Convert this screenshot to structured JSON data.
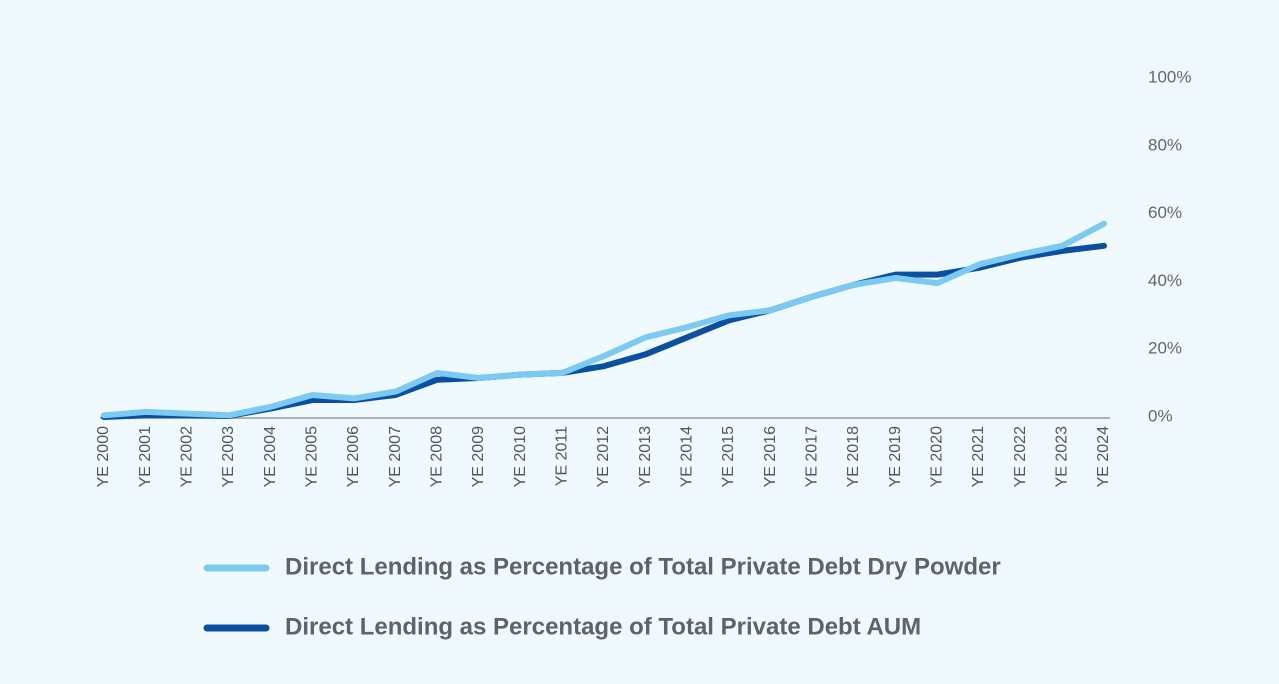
{
  "chart_data": {
    "type": "line",
    "categories": [
      "YE 2000",
      "YE 2001",
      "YE 2002",
      "YE 2003",
      "YE 2004",
      "YE 2005",
      "YE 2006",
      "YE 2007",
      "YE 2008",
      "YE 2009",
      "YE 2010",
      "YE 2011",
      "YE 2012",
      "YE 2013",
      "YE 2014",
      "YE 2015",
      "YE 2016",
      "YE 2017",
      "YE 2018",
      "YE 2019",
      "YE 2020",
      "YE 2021",
      "YE 2022",
      "YE 2023",
      "YE 2024"
    ],
    "series": [
      {
        "name": "Direct Lending as Percentage of Total Private Debt Dry Powder",
        "color": "#7ccaf2",
        "values": [
          0.5,
          1.5,
          1,
          0.5,
          3,
          6.5,
          5.5,
          7.5,
          13,
          11.5,
          12.5,
          13,
          18,
          23.5,
          26.5,
          30,
          31.5,
          35.5,
          39,
          41,
          39.5,
          45,
          48,
          50.5,
          57
        ]
      },
      {
        "name": "Direct Lending as Percentage of Total Private Debt AUM",
        "color": "#0a4fa0",
        "values": [
          0,
          0.5,
          0.5,
          0.3,
          2.5,
          5,
          5,
          6.5,
          11,
          11.5,
          12.5,
          13,
          15,
          18.5,
          23.5,
          28.5,
          31.5,
          35.5,
          39,
          42,
          42,
          44,
          47,
          49,
          50.5
        ]
      }
    ],
    "ylim": [
      0,
      100
    ],
    "yticks": [
      {
        "value": 0,
        "label": "0%"
      },
      {
        "value": 20,
        "label": "20%"
      },
      {
        "value": 40,
        "label": "40%"
      },
      {
        "value": 60,
        "label": "60%"
      },
      {
        "value": 80,
        "label": "80%"
      },
      {
        "value": 100,
        "label": "100%"
      }
    ],
    "y_axis_side": "right"
  }
}
